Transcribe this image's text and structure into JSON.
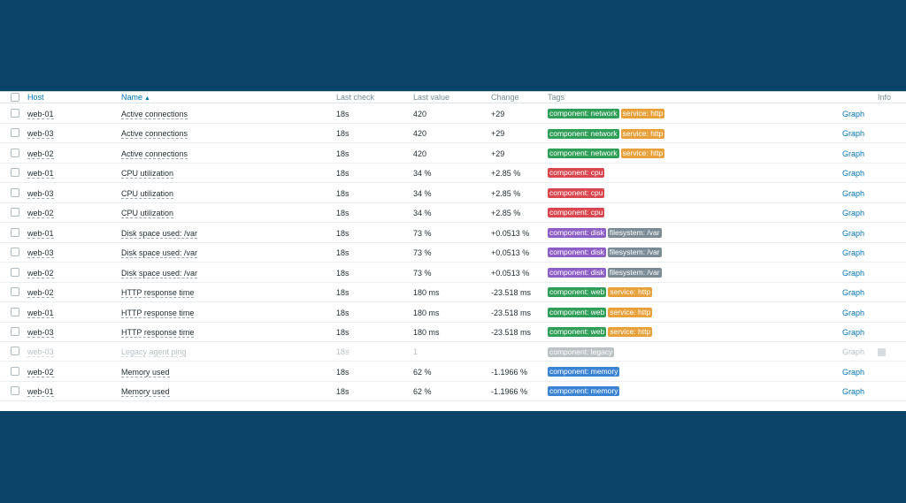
{
  "columns": {
    "host": "Host",
    "name": "Name",
    "sort_arrow": "▲",
    "last_check": "Last check",
    "last_value": "Last value",
    "change": "Change",
    "tags": "Tags",
    "info": "Info"
  },
  "tag_colors": {
    "network": "#2f9e57",
    "http": "#e8a13a",
    "cpu": "#d9464e",
    "disk": "#8e5ec7",
    "filesystem": "#7b8b96",
    "web": "#2f9e57",
    "legacy": "#b4bdc2",
    "memory": "#3a83d4"
  },
  "rows": [
    {
      "host": "web-01",
      "name": "Active connections",
      "last_check": "18s",
      "last_value": "420",
      "change": "+29",
      "graph": "Graph",
      "tags": [
        {
          "label": "component: network",
          "color": "#2f9e57"
        },
        {
          "label": "service: http",
          "color": "#e8a13a"
        }
      ]
    },
    {
      "host": "web-03",
      "name": "Active connections",
      "last_check": "18s",
      "last_value": "420",
      "change": "+29",
      "graph": "Graph",
      "tags": [
        {
          "label": "component: network",
          "color": "#2f9e57"
        },
        {
          "label": "service: http",
          "color": "#e8a13a"
        }
      ]
    },
    {
      "host": "web-02",
      "name": "Active connections",
      "last_check": "18s",
      "last_value": "420",
      "change": "+29",
      "graph": "Graph",
      "tags": [
        {
          "label": "component: network",
          "color": "#2f9e57"
        },
        {
          "label": "service: http",
          "color": "#e8a13a"
        }
      ]
    },
    {
      "host": "web-01",
      "name": "CPU utilization",
      "last_check": "18s",
      "last_value": "34 %",
      "change": "+2.85 %",
      "graph": "Graph",
      "tags": [
        {
          "label": "component: cpu",
          "color": "#d9464e"
        }
      ]
    },
    {
      "host": "web-03",
      "name": "CPU utilization",
      "last_check": "18s",
      "last_value": "34 %",
      "change": "+2.85 %",
      "graph": "Graph",
      "tags": [
        {
          "label": "component: cpu",
          "color": "#d9464e"
        }
      ]
    },
    {
      "host": "web-02",
      "name": "CPU utilization",
      "last_check": "18s",
      "last_value": "34 %",
      "change": "+2.85 %",
      "graph": "Graph",
      "tags": [
        {
          "label": "component: cpu",
          "color": "#d9464e"
        }
      ]
    },
    {
      "host": "web-01",
      "name": "Disk space used: /var",
      "last_check": "18s",
      "last_value": "73 %",
      "change": "+0.0513 %",
      "graph": "Graph",
      "tags": [
        {
          "label": "component: disk",
          "color": "#8e5ec7"
        },
        {
          "label": "filesystem: /var",
          "color": "#7b8b96"
        }
      ]
    },
    {
      "host": "web-03",
      "name": "Disk space used: /var",
      "last_check": "18s",
      "last_value": "73 %",
      "change": "+0.0513 %",
      "graph": "Graph",
      "tags": [
        {
          "label": "component: disk",
          "color": "#8e5ec7"
        },
        {
          "label": "filesystem: /var",
          "color": "#7b8b96"
        }
      ]
    },
    {
      "host": "web-02",
      "name": "Disk space used: /var",
      "last_check": "18s",
      "last_value": "73 %",
      "change": "+0.0513 %",
      "graph": "Graph",
      "tags": [
        {
          "label": "component: disk",
          "color": "#8e5ec7"
        },
        {
          "label": "filesystem: /var",
          "color": "#7b8b96"
        }
      ]
    },
    {
      "host": "web-02",
      "name": "HTTP response time",
      "last_check": "18s",
      "last_value": "180 ms",
      "change": "-23.518 ms",
      "graph": "Graph",
      "tags": [
        {
          "label": "component: web",
          "color": "#2f9e57"
        },
        {
          "label": "service: http",
          "color": "#e8a13a"
        }
      ]
    },
    {
      "host": "web-01",
      "name": "HTTP response time",
      "last_check": "18s",
      "last_value": "180 ms",
      "change": "-23.518 ms",
      "graph": "Graph",
      "tags": [
        {
          "label": "component: web",
          "color": "#2f9e57"
        },
        {
          "label": "service: http",
          "color": "#e8a13a"
        }
      ]
    },
    {
      "host": "web-03",
      "name": "HTTP response time",
      "last_check": "18s",
      "last_value": "180 ms",
      "change": "-23.518 ms",
      "graph": "Graph",
      "tags": [
        {
          "label": "component: web",
          "color": "#2f9e57"
        },
        {
          "label": "service: http",
          "color": "#e8a13a"
        }
      ]
    },
    {
      "host": "web-03",
      "name": "Legacy agent ping",
      "last_check": "18s",
      "last_value": "1",
      "change": "",
      "graph": "Graph",
      "disabled": true,
      "info_icon": "info-icon",
      "tags": [
        {
          "label": "component: legacy",
          "color": "#b4bdc2"
        }
      ]
    },
    {
      "host": "web-02",
      "name": "Memory used",
      "last_check": "18s",
      "last_value": "62 %",
      "change": "-1.1966 %",
      "graph": "Graph",
      "tags": [
        {
          "label": "component: memory",
          "color": "#3a83d4"
        }
      ]
    },
    {
      "host": "web-01",
      "name": "Memory used",
      "last_check": "18s",
      "last_value": "62 %",
      "change": "-1.1966 %",
      "graph": "Graph",
      "tags": [
        {
          "label": "component: memory",
          "color": "#3a83d4"
        }
      ]
    }
  ]
}
